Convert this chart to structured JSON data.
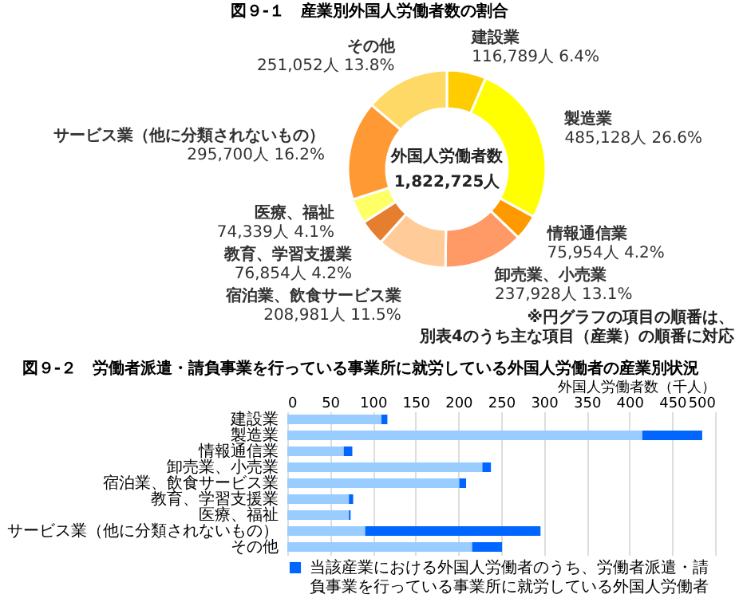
{
  "chart_data": [
    {
      "type": "donut",
      "title": "図９-１　産業別外国人労働者数の割合",
      "categories": [
        "建設業",
        "製造業",
        "情報通信業",
        "卸売業、小売業",
        "宿泊業、飲食サービス業",
        "教育、学習支援業",
        "医療、福祉",
        "サービス業（他に分類されないもの）",
        "その他"
      ],
      "values": [
        116789,
        485128,
        75954,
        237928,
        208981,
        76854,
        74339,
        295700,
        251052
      ],
      "colors": [
        "#ffcc00",
        "#ffff00",
        "#ff9900",
        "#ff9966",
        "#ffcc99",
        "#e67e30",
        "#ffff66",
        "#ff9933",
        "#ffd966"
      ],
      "value_labels": [
        "116,789人 6.4%",
        "485,128人 26.6%",
        "75,954人 4.2%",
        "237,928人 13.1%",
        "208,981人 11.5%",
        "76,854人 4.2%",
        "74,339人 4.1%",
        "295,700人 16.2%",
        "251,052人 13.8%"
      ],
      "annotations": [
        "外国人労働者数",
        "1,822,725人",
        "※円グラフの項目の順番は、別表4のうち主な項目（産業）の順番に対応"
      ]
    },
    {
      "type": "bar",
      "orientation": "horizontal",
      "stacked": true,
      "title": "図９-２　労働者派遣・請負事業を行っている事業所に就労している外国人労働者の産業別状況",
      "xlabel": "外国人労働者数（千人）",
      "categories": [
        "建設業",
        "製造業",
        "情報通信業",
        "卸売業、小売業",
        "宿泊業、飲食サービス業",
        "教育、学習支援業",
        "医療、福祉",
        "サービス業（他に分類されないもの）",
        "その他"
      ],
      "series": [
        {
          "color": "#99ccff",
          "values": [
            110,
            415,
            66,
            228,
            201,
            72,
            72,
            91,
            216
          ]
        },
        {
          "name": "当該産業における外国人労働者のうち、労働者派遣・請負事業を行っている事業所に就労している外国人労働者",
          "color": "#0066ff",
          "values": [
            7,
            70,
            10,
            10,
            8,
            5,
            2,
            205,
            35
          ]
        }
      ],
      "xlim": [
        0,
        500
      ],
      "xticks": [
        0,
        50,
        100,
        150,
        200,
        250,
        300,
        350,
        400,
        450,
        500
      ],
      "grid": "x",
      "legend": "bottom"
    }
  ]
}
